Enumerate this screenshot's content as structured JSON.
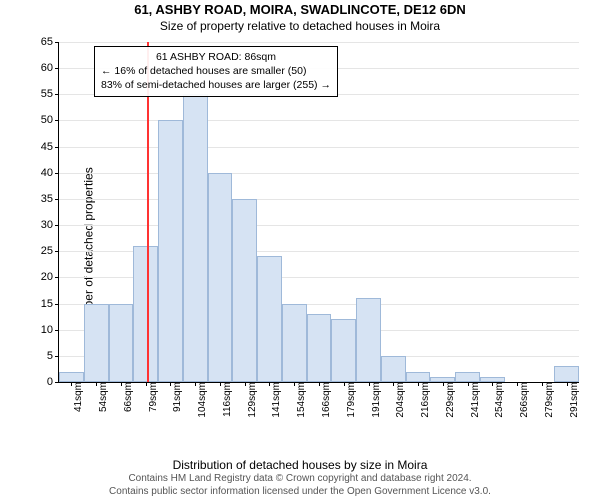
{
  "title": "61, ASHBY ROAD, MOIRA, SWADLINCOTE, DE12 6DN",
  "subtitle": "Size of property relative to detached houses in Moira",
  "y_label": "Number of detached properties",
  "x_label": "Distribution of detached houses by size in Moira",
  "chart": {
    "type": "histogram",
    "y": {
      "min": 0,
      "max": 65,
      "step": 5
    },
    "x_ticks": [
      "41sqm",
      "54sqm",
      "66sqm",
      "79sqm",
      "91sqm",
      "104sqm",
      "116sqm",
      "129sqm",
      "141sqm",
      "154sqm",
      "166sqm",
      "179sqm",
      "191sqm",
      "204sqm",
      "216sqm",
      "229sqm",
      "241sqm",
      "254sqm",
      "266sqm",
      "279sqm",
      "291sqm"
    ],
    "values": [
      2,
      15,
      15,
      26,
      50,
      55,
      40,
      35,
      24,
      15,
      13,
      12,
      16,
      5,
      2,
      1,
      2,
      1,
      0,
      0,
      3
    ],
    "bar_fill": "#d6e3f3",
    "bar_stroke": "#9fb9d9",
    "grid_color": "#e5e5e5",
    "axis_color": "#000000",
    "background": "#ffffff",
    "marker_line": {
      "position_index": 3.55,
      "color": "#ff3333"
    }
  },
  "annotation": {
    "line1": "61 ASHBY ROAD: 86sqm",
    "line2": "← 16% of detached houses are smaller (50)",
    "line3": "83% of semi-detached houses are larger (255) →"
  },
  "credit": {
    "line1": "Contains HM Land Registry data © Crown copyright and database right 2024.",
    "line2": "Contains public sector information licensed under the Open Government Licence v3.0."
  }
}
